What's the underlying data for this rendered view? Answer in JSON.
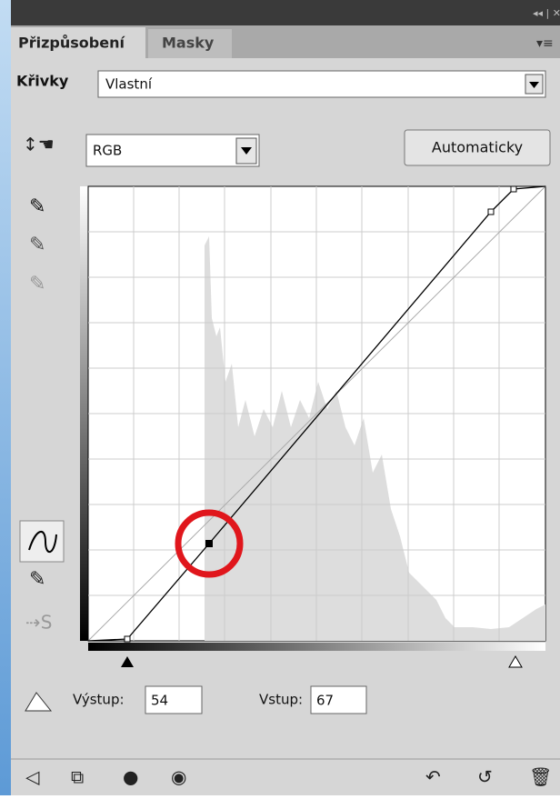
{
  "tabs": [
    "Přizpůsobení",
    "Masky"
  ],
  "adjustment": {
    "label": "Křivky",
    "preset": "Vlastní"
  },
  "channel": "RGB",
  "auto_button": "Automaticky",
  "output": {
    "label": "Výstup:",
    "value": "54"
  },
  "input": {
    "label": "Vstup:",
    "value": "67"
  }
}
